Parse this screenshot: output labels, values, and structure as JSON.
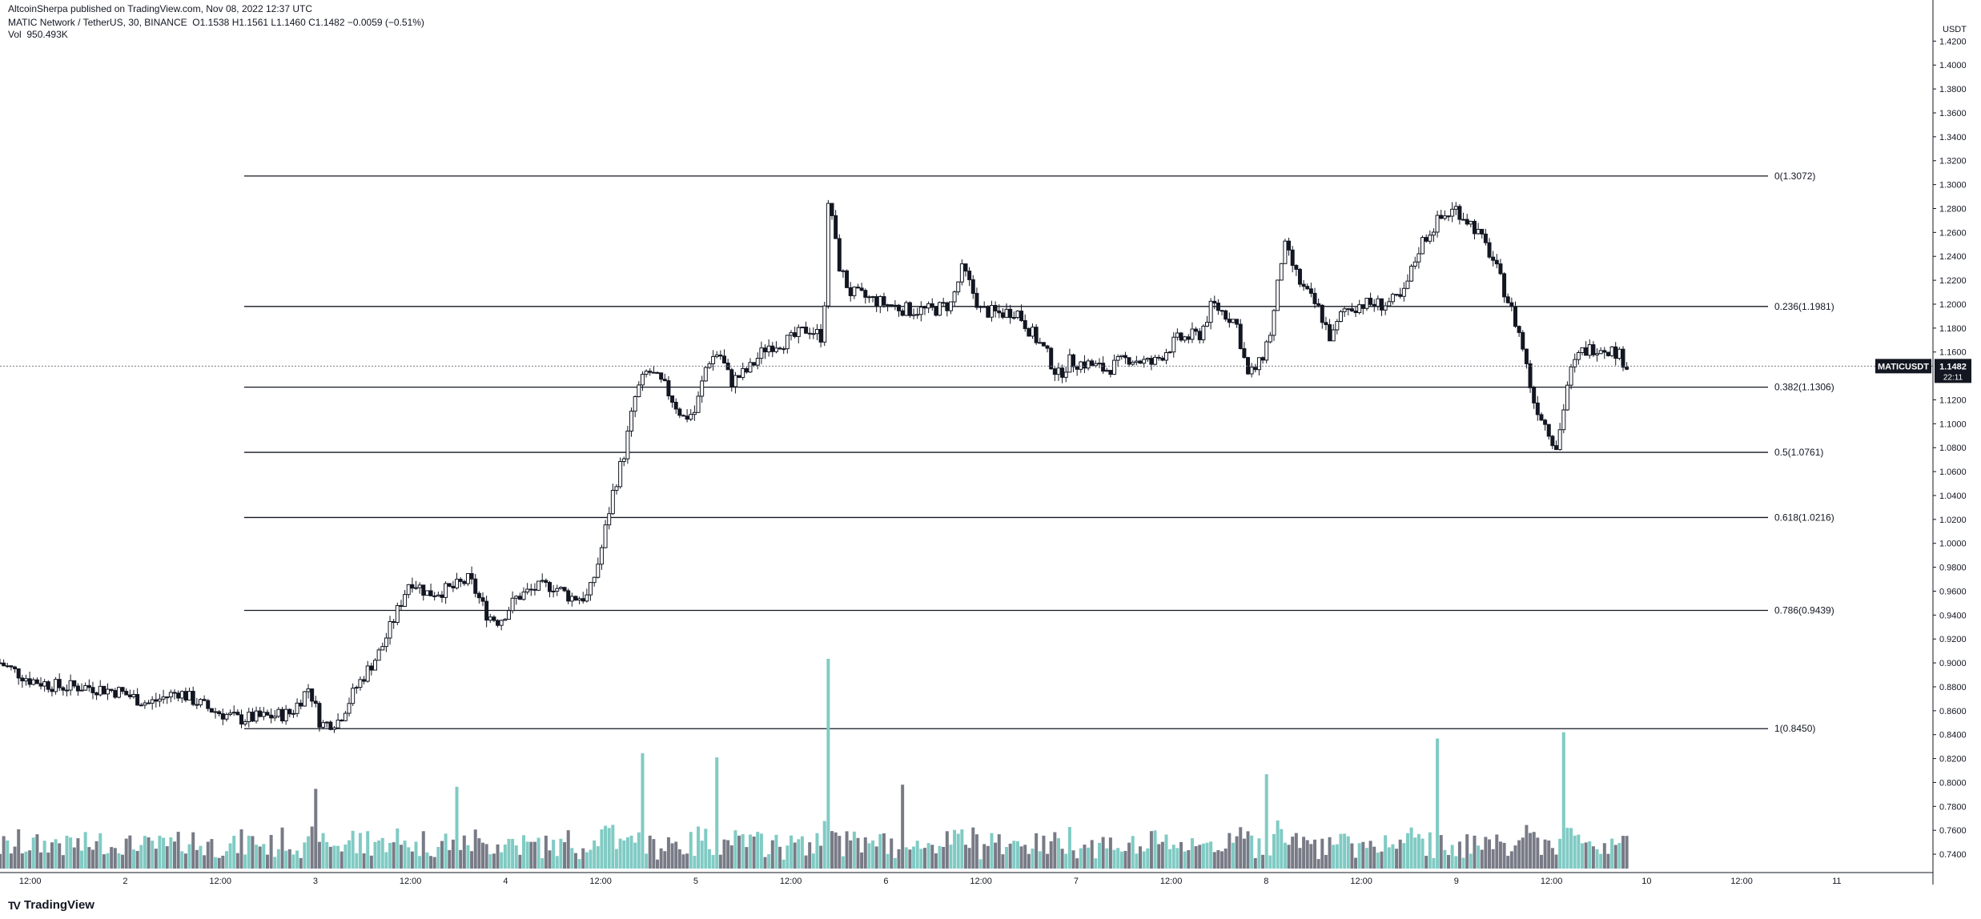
{
  "publish_line": "AltcoinSherpa published on TradingView.com, Nov 08, 2022 12:37 UTC",
  "legend": {
    "symbol_line": "MATIC Network / TetherUS, 30, BINANCE",
    "open": "O1.1538",
    "high": "H1.1561",
    "low": "L1.1460",
    "close": "C1.1482",
    "change": "−0.0059 (−0.51%)",
    "volume_label": "Vol",
    "volume_value": "950.493K"
  },
  "brand": {
    "label": "TradingView",
    "icon": "tradingview-logo-icon"
  },
  "colors": {
    "up_volume": "#80cbc4",
    "down_volume": "#787b86",
    "candle": "#131722",
    "price_tag_bg": "#131722"
  },
  "chart_data": {
    "type": "candlestick",
    "symbol": "MATICUSDT",
    "price_axis": {
      "unit": "USDT",
      "range": [
        0.728,
        1.441
      ],
      "ticks": [
        "1.4200",
        "1.4000",
        "1.3800",
        "1.3600",
        "1.3400",
        "1.3200",
        "1.3000",
        "1.2800",
        "1.2600",
        "1.2400",
        "1.2200",
        "1.2000",
        "1.1800",
        "1.1600",
        "1.1200",
        "1.1000",
        "1.0800",
        "1.0600",
        "1.0400",
        "1.0200",
        "1.0000",
        "0.9800",
        "0.9600",
        "0.9400",
        "0.9200",
        "0.9000",
        "0.8800",
        "0.8600",
        "0.8400",
        "0.8200",
        "0.8000",
        "0.7800",
        "0.7600",
        "0.7400"
      ]
    },
    "time_axis": {
      "ticks": [
        "12:00",
        "2",
        "12:00",
        "3",
        "12:00",
        "4",
        "12:00",
        "5",
        "12:00",
        "6",
        "12:00",
        "7",
        "12:00",
        "8",
        "12:00",
        "9",
        "12:00",
        "10",
        "12:00",
        "11"
      ],
      "range": [
        -2,
        30.5
      ]
    },
    "current_price": {
      "label": "MATICUSDT",
      "value": "1.1482",
      "countdown": "22:11"
    },
    "fib_levels": [
      {
        "label": "0(1.3072)",
        "value": 1.3072
      },
      {
        "label": "0.236(1.1981)",
        "value": 1.1981
      },
      {
        "label": "0.382(1.1306)",
        "value": 1.1306
      },
      {
        "label": "0.5(1.0761)",
        "value": 1.0761
      },
      {
        "label": "0.618(1.0216)",
        "value": 1.0216
      },
      {
        "label": "0.786(0.9439)",
        "value": 0.9439
      },
      {
        "label": "1(0.8450)",
        "value": 0.845
      }
    ],
    "fib_span": [
      0.55,
      15.6
    ],
    "price_path": [
      [
        -2,
        0.9
      ],
      [
        -1.5,
        0.886
      ],
      [
        -1,
        0.88
      ],
      [
        -0.5,
        0.88
      ],
      [
        0,
        0.876
      ],
      [
        0.5,
        0.866
      ],
      [
        1,
        0.876
      ],
      [
        1.5,
        0.862
      ],
      [
        2,
        0.853
      ],
      [
        2.5,
        0.855
      ],
      [
        2.9,
        0.858
      ],
      [
        3.2,
        0.88
      ],
      [
        3.4,
        0.848
      ],
      [
        3.7,
        0.852
      ],
      [
        4,
        0.88
      ],
      [
        4.4,
        0.91
      ],
      [
        4.7,
        0.945
      ],
      [
        4.9,
        0.97
      ],
      [
        5.2,
        0.958
      ],
      [
        5.6,
        0.962
      ],
      [
        5.9,
        0.97
      ],
      [
        6.2,
        0.94
      ],
      [
        6.4,
        0.935
      ],
      [
        6.7,
        0.955
      ],
      [
        7,
        0.962
      ],
      [
        7.3,
        0.965
      ],
      [
        7.6,
        0.955
      ],
      [
        7.9,
        0.955
      ],
      [
        8.1,
        0.99
      ],
      [
        8.3,
        1.04
      ],
      [
        8.5,
        1.075
      ],
      [
        8.7,
        1.125
      ],
      [
        8.9,
        1.145
      ],
      [
        9.2,
        1.13
      ],
      [
        9.5,
        1.105
      ],
      [
        9.7,
        1.11
      ],
      [
        9.9,
        1.152
      ],
      [
        10.1,
        1.16
      ],
      [
        10.3,
        1.135
      ],
      [
        10.6,
        1.145
      ],
      [
        10.9,
        1.165
      ],
      [
        11.3,
        1.17
      ],
      [
        11.6,
        1.18
      ],
      [
        11.85,
        1.172
      ],
      [
        11.95,
        1.295
      ],
      [
        12.1,
        1.235
      ],
      [
        12.3,
        1.21
      ],
      [
        12.6,
        1.205
      ],
      [
        12.9,
        1.2
      ],
      [
        13.3,
        1.195
      ],
      [
        13.7,
        1.195
      ],
      [
        14,
        1.2
      ],
      [
        14.2,
        1.23
      ],
      [
        14.5,
        1.195
      ],
      [
        14.8,
        1.192
      ],
      [
        15.1,
        1.195
      ],
      [
        15.3,
        1.18
      ],
      [
        15.6,
        1.16
      ],
      [
        15.8,
        1.14
      ],
      [
        16,
        1.152
      ],
      [
        16.3,
        1.15
      ],
      [
        16.6,
        1.145
      ],
      [
        17,
        1.155
      ],
      [
        17.4,
        1.15
      ],
      [
        17.8,
        1.17
      ],
      [
        18.2,
        1.175
      ],
      [
        18.4,
        1.2
      ],
      [
        18.8,
        1.185
      ],
      [
        19,
        1.14
      ],
      [
        19.2,
        1.15
      ],
      [
        19.4,
        1.18
      ],
      [
        19.6,
        1.25
      ],
      [
        19.9,
        1.215
      ],
      [
        20.2,
        1.195
      ],
      [
        20.4,
        1.17
      ],
      [
        20.6,
        1.195
      ],
      [
        20.9,
        1.2
      ],
      [
        21.3,
        1.2
      ],
      [
        21.6,
        1.205
      ],
      [
        21.9,
        1.25
      ],
      [
        22.2,
        1.27
      ],
      [
        22.5,
        1.28
      ],
      [
        22.8,
        1.265
      ],
      [
        23.1,
        1.24
      ],
      [
        23.4,
        1.2
      ],
      [
        23.6,
        1.17
      ],
      [
        23.8,
        1.12
      ],
      [
        24,
        1.1
      ],
      [
        24.2,
        1.08
      ],
      [
        24.4,
        1.14
      ],
      [
        24.6,
        1.16
      ],
      [
        24.9,
        1.165
      ],
      [
        25.2,
        1.16
      ],
      [
        25.4,
        1.148
      ]
    ],
    "volume_spikes": [
      {
        "x": 11.95,
        "h": 1.0,
        "up": true
      },
      {
        "x": 24.3,
        "h": 0.65,
        "up": true
      },
      {
        "x": 22.2,
        "h": 0.62,
        "up": true
      },
      {
        "x": 8.8,
        "h": 0.55,
        "up": true
      },
      {
        "x": 10.05,
        "h": 0.53,
        "up": true
      },
      {
        "x": 19.3,
        "h": 0.45,
        "up": true
      },
      {
        "x": 13.2,
        "h": 0.4,
        "up": true
      },
      {
        "x": 3.3,
        "h": 0.38,
        "up": false
      },
      {
        "x": 5.7,
        "h": 0.39,
        "up": false
      }
    ]
  }
}
